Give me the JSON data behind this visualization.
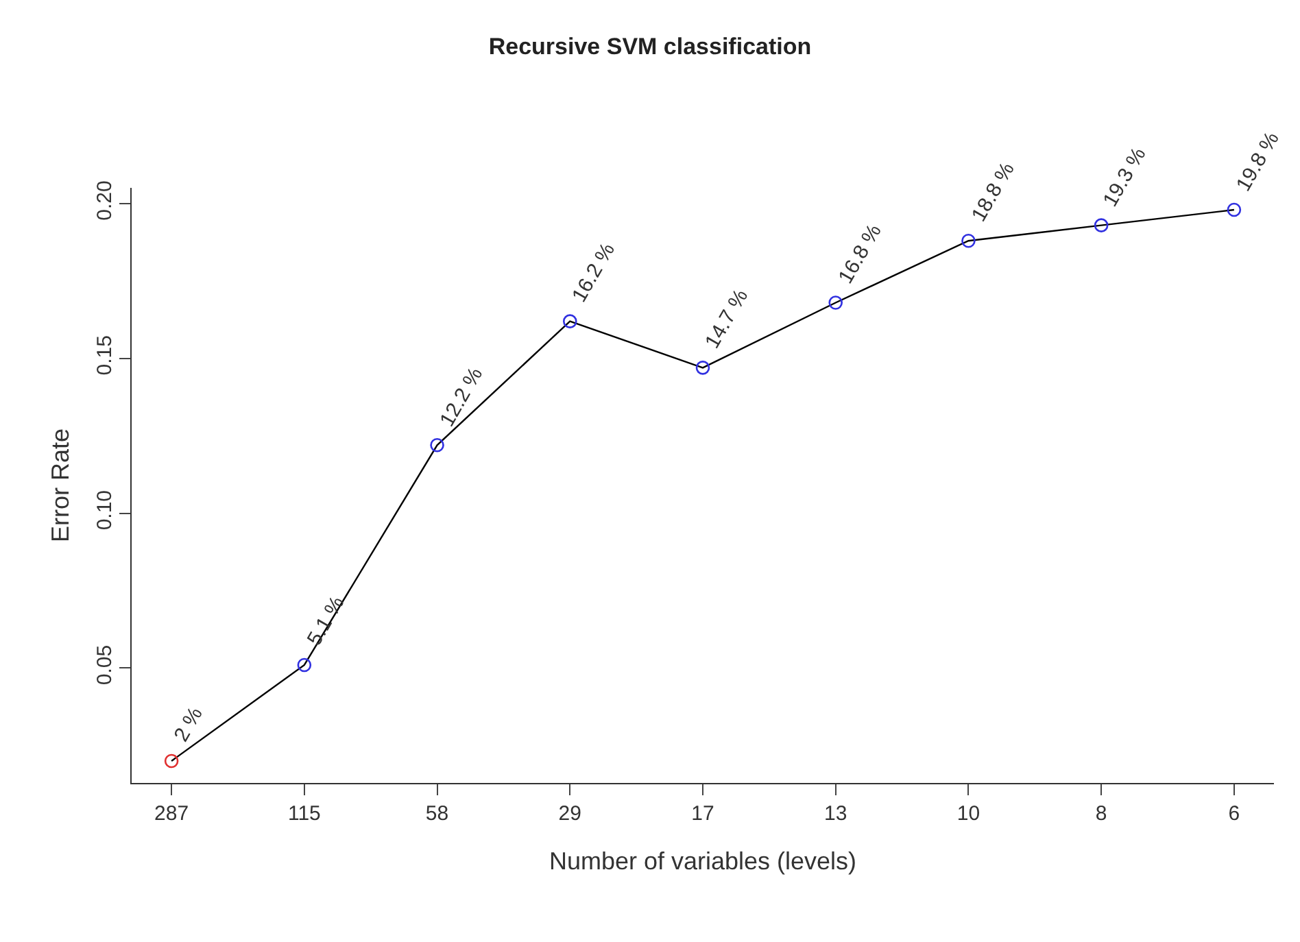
{
  "chart_data": {
    "type": "line",
    "title": "Recursive SVM classification",
    "xlabel": "Number of variables (levels)",
    "ylabel": "Error Rate",
    "categories": [
      "287",
      "115",
      "58",
      "29",
      "17",
      "13",
      "10",
      "8",
      "6"
    ],
    "series": [
      {
        "color": "#000000",
        "colors": [
          "#e03030",
          "#3030e0",
          "#3030e0",
          "#3030e0",
          "#3030e0",
          "#3030e0",
          "#3030e0",
          "#3030e0",
          "#3030e0"
        ],
        "values": [
          0.02,
          0.051,
          0.122,
          0.162,
          0.147,
          0.168,
          0.188,
          0.193,
          0.198
        ],
        "value_labels": [
          "2 %",
          "5.1 %",
          "12.2 %",
          "16.2 %",
          "14.7 %",
          "16.8 %",
          "18.8 %",
          "19.3 %",
          "19.8 %"
        ]
      }
    ],
    "ylim": [
      0.0129,
      0.2051
    ],
    "yticks": [
      {
        "value": 0.05,
        "label": "0.05"
      },
      {
        "value": 0.1,
        "label": "0.10"
      },
      {
        "value": 0.15,
        "label": "0.15"
      },
      {
        "value": 0.2,
        "label": "0.20"
      }
    ],
    "marker": "circle",
    "line_style": "solid"
  }
}
